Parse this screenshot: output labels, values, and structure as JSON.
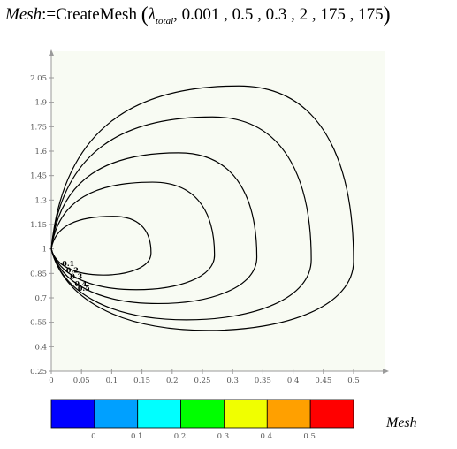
{
  "formula": {
    "lhs": "Mesh",
    "assign": ":=",
    "func": "CreateMesh",
    "lambda": "λ",
    "lambda_sub": "total",
    "args": ", 0.001 , 0.5 , 0.3 , 2 , 175 , 175"
  },
  "chart_data": {
    "type": "contour",
    "y_ticks": [
      "0.25",
      "0.4",
      "0.55",
      "0.7",
      "0.85",
      "1",
      "1.15",
      "1.3",
      "1.45",
      "1.6",
      "1.75",
      "1.9",
      "2.05"
    ],
    "x_ticks": [
      "0",
      "0.05",
      "0.1",
      "0.15",
      "0.2",
      "0.25",
      "0.3",
      "0.35",
      "0.4",
      "0.45",
      "0.5"
    ],
    "contour_levels": [
      "0.1",
      "0.2",
      "0.3",
      "0.4",
      "0.5"
    ],
    "contours": [
      {
        "level": "0.1",
        "x_max": 0.165,
        "y_top": 1.2,
        "y_bottom": 0.84
      },
      {
        "level": "0.2",
        "x_max": 0.27,
        "y_top": 1.41,
        "y_bottom": 0.75
      },
      {
        "level": "0.3",
        "x_max": 0.34,
        "y_top": 1.59,
        "y_bottom": 0.665
      },
      {
        "level": "0.4",
        "x_max": 0.43,
        "y_top": 1.81,
        "y_bottom": 0.565
      },
      {
        "level": "0.5",
        "x_max": 0.5,
        "y_top": 2.0,
        "y_bottom": 0.5
      }
    ],
    "colorbar": {
      "colors": [
        "#0000ff",
        "#00a0ff",
        "#00ffff",
        "#00ff00",
        "#f0ff00",
        "#ffa000",
        "#ff0000"
      ],
      "ticks": [
        "0",
        "0.1",
        "0.2",
        "0.3",
        "0.4",
        "0.5"
      ]
    },
    "legend_label": "Mesh"
  }
}
